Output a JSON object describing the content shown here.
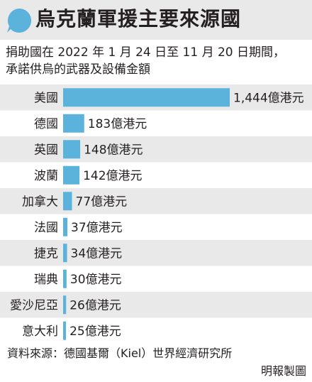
{
  "header": {
    "title": "烏克蘭軍援主要來源國",
    "subtitle_line1": "捐助國在 2022 年 1 月 24 日至 11 月 20 日期間，",
    "subtitle_line2": "承諾供烏的武器及設備金額"
  },
  "colors": {
    "bar": "#5bb3dc",
    "row_shade": "#e9e9e9",
    "header_bg": "#e9e9e9",
    "icon": "#5bb3dc"
  },
  "chart_data": {
    "type": "bar",
    "orientation": "horizontal",
    "unit": "億港元",
    "categories": [
      "美國",
      "德國",
      "英國",
      "波蘭",
      "加拿大",
      "法國",
      "捷克",
      "瑞典",
      "愛沙尼亞",
      "意大利"
    ],
    "values": [
      1444,
      183,
      148,
      142,
      77,
      37,
      34,
      30,
      26,
      25
    ],
    "value_labels": [
      "1,444億港元",
      "183億港元",
      "148億港元",
      "142億港元",
      "77億港元",
      "37億港元",
      "34億港元",
      "30億港元",
      "26億港元",
      "25億港元"
    ],
    "row_shading": "alternating",
    "grid": false,
    "legend": false
  },
  "footer": {
    "source": "資料來源：德國基爾（Kiel）世界經濟研究所",
    "credit": "明報製圖"
  }
}
